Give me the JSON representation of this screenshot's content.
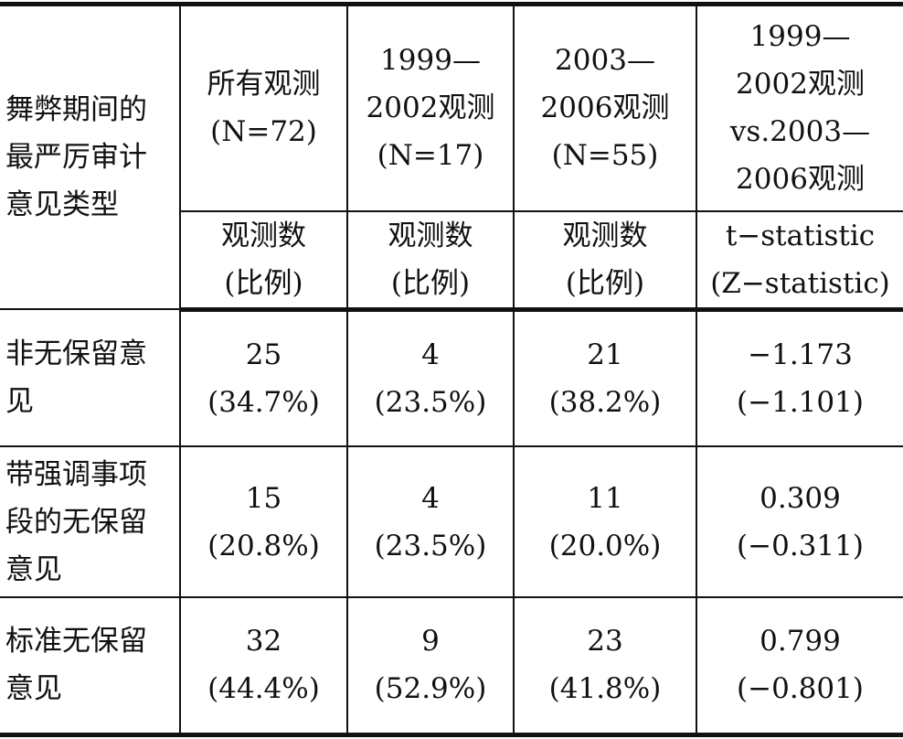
{
  "table": {
    "corner": [
      "舞弊期间的",
      "最严厉审计",
      "意见类型"
    ],
    "columns": [
      [
        "所有观测",
        "(N=72)"
      ],
      [
        "1999—",
        "2002观测",
        "(N=17)"
      ],
      [
        "2003—",
        "2006观测",
        "(N=55)"
      ],
      [
        "1999—",
        "2002观测",
        "vs.2003—",
        "2006观测"
      ]
    ],
    "subheaders": [
      [
        "观测数",
        "(比例)"
      ],
      [
        "观测数",
        "(比例)"
      ],
      [
        "观测数",
        "(比例)"
      ],
      [
        "t−statistic",
        "(Z−statistic)"
      ]
    ],
    "rows": [
      {
        "label": [
          "非无保留意",
          "见"
        ],
        "cells": [
          [
            "25",
            "(34.7%)"
          ],
          [
            "4",
            "(23.5%)"
          ],
          [
            "21",
            "(38.2%)"
          ],
          [
            "−1.173",
            "(−1.101)"
          ]
        ]
      },
      {
        "label": [
          "带强调事项",
          "段的无保留",
          "意见"
        ],
        "cells": [
          [
            "15",
            "(20.8%)"
          ],
          [
            "4",
            "(23.5%)"
          ],
          [
            "11",
            "(20.0%)"
          ],
          [
            "0.309",
            "(−0.311)"
          ]
        ]
      },
      {
        "label": [
          "标准无保留",
          "意见"
        ],
        "cells": [
          [
            "32",
            "(44.4%)"
          ],
          [
            "9",
            "(52.9%)"
          ],
          [
            "23",
            "(41.8%)"
          ],
          [
            "0.799",
            "(−0.801)"
          ]
        ]
      }
    ]
  }
}
